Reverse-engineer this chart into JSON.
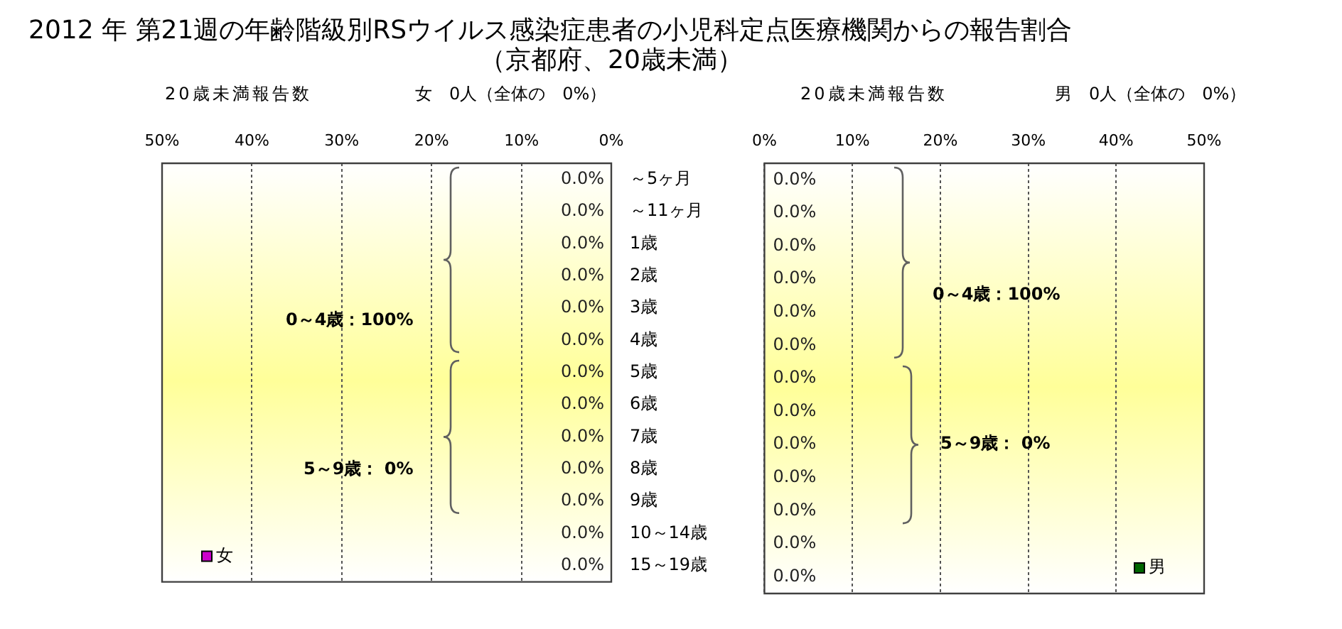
{
  "chart_data": [
    {
      "type": "bar",
      "orientation": "horizontal",
      "title": "2012 年 第21週の年齢階級別RSウイルス感染症患者の小児科定点医療機関からの報告割合",
      "subtitle": "（京都府、20歳未満）",
      "categories": [
        "～5ヶ月",
        "～11ヶ月",
        "1歳",
        "2歳",
        "3歳",
        "4歳",
        "5歳",
        "6歳",
        "7歳",
        "8歳",
        "9歳",
        "10～14歳",
        "15～19歳"
      ],
      "series": [
        {
          "name": "女",
          "color": "#cc00cc",
          "values": [
            0,
            0,
            0,
            0,
            0,
            0,
            0,
            0,
            0,
            0,
            0,
            0,
            0
          ],
          "value_labels": [
            "0.0%",
            "0.0%",
            "0.0%",
            "0.0%",
            "0.0%",
            "0.0%",
            "0.0%",
            "0.0%",
            "0.0%",
            "0.0%",
            "0.0%",
            "0.0%",
            "0.0%"
          ]
        }
      ],
      "xlim": [
        50,
        0
      ],
      "xticks": [
        {
          "value": 50,
          "label": "50%"
        },
        {
          "value": 40,
          "label": "40%"
        },
        {
          "value": 30,
          "label": "30%"
        },
        {
          "value": 20,
          "label": "20%"
        },
        {
          "value": 10,
          "label": "10%"
        },
        {
          "value": 0,
          "label": "0%"
        }
      ],
      "grid": "x",
      "legend": "bottom left",
      "annotations": [
        "20歳未満報告数",
        "女　0人（全体の　0%）",
        "0～4歳：100%",
        "5～9歳： 0%"
      ]
    },
    {
      "type": "bar",
      "orientation": "horizontal",
      "categories": [
        null,
        null,
        null,
        null,
        null,
        null,
        null,
        null,
        null,
        null,
        null,
        null,
        null
      ],
      "series": [
        {
          "name": "男",
          "color": "#006600",
          "values": [
            0,
            0,
            0,
            0,
            0,
            0,
            0,
            0,
            0,
            0,
            0,
            0,
            0
          ],
          "value_labels": [
            "0.0%",
            "0.0%",
            "0.0%",
            "0.0%",
            "0.0%",
            "0.0%",
            "0.0%",
            "0.0%",
            "0.0%",
            "0.0%",
            "0.0%",
            "0.0%",
            "0.0%"
          ]
        }
      ],
      "xlim": [
        0,
        50
      ],
      "xticks": [
        {
          "value": 0,
          "label": "0%"
        },
        {
          "value": 10,
          "label": "10%"
        },
        {
          "value": 20,
          "label": "20%"
        },
        {
          "value": 30,
          "label": "30%"
        },
        {
          "value": 40,
          "label": "40%"
        },
        {
          "value": 50,
          "label": "50%"
        }
      ],
      "grid": "x",
      "legend": "bottom right",
      "tick_labels": "x",
      "annotations": [
        "20歳未満報告数",
        "男　0人（全体の　0%）",
        "0～4歳：100%",
        "5～9歳： 0%"
      ]
    }
  ]
}
